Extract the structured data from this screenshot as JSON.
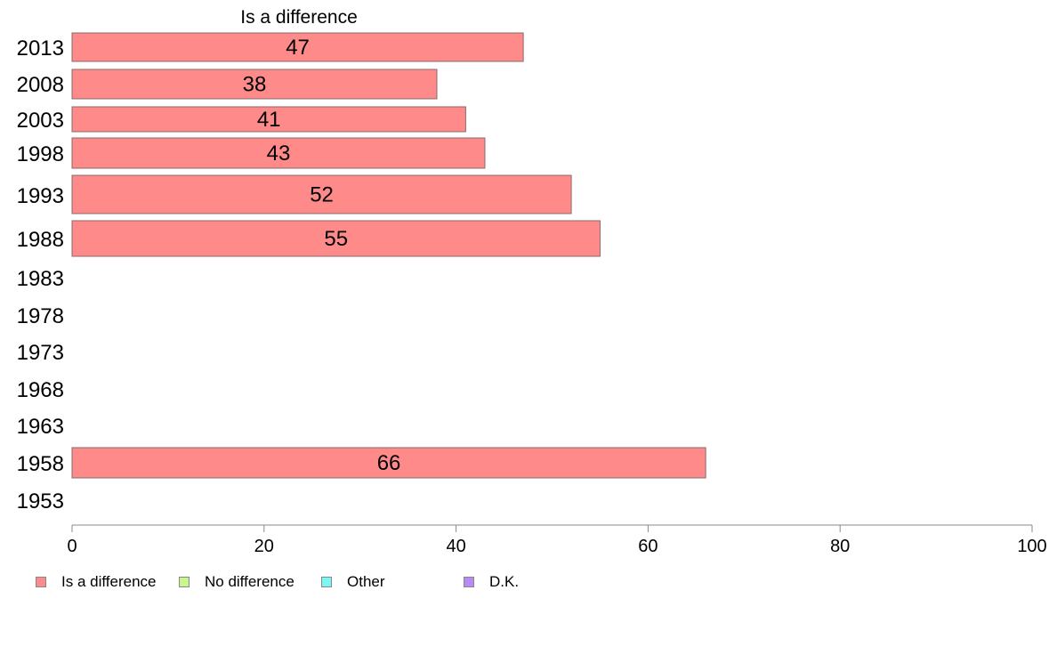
{
  "chart_data": {
    "type": "bar",
    "orientation": "horizontal",
    "title": "Is a difference",
    "xlabel": "",
    "ylabel": "",
    "xlim": [
      0,
      100
    ],
    "x_ticks": [
      0,
      20,
      40,
      60,
      80,
      100
    ],
    "grid": false,
    "legend_position": "bottom",
    "categories": [
      "2013",
      "2008",
      "2003",
      "1998",
      "1993",
      "1988",
      "1983",
      "1978",
      "1973",
      "1968",
      "1963",
      "1958",
      "1953"
    ],
    "series": [
      {
        "name": "Is a difference",
        "color": "#ff8a8a",
        "values": [
          47,
          38,
          41,
          43,
          52,
          55,
          null,
          null,
          null,
          null,
          null,
          66,
          null
        ]
      }
    ],
    "data_labels": [
      "47",
      "38",
      "41",
      "43",
      "52",
      "55",
      "",
      "",
      "",
      "",
      "",
      "66",
      ""
    ]
  },
  "legend": [
    {
      "label": "Is a difference",
      "color": "#ff8a8a"
    },
    {
      "label": "No difference",
      "color": "#c8f58c"
    },
    {
      "label": "Other",
      "color": "#7df5f5"
    },
    {
      "label": "D.K.",
      "color": "#b88af5"
    }
  ]
}
